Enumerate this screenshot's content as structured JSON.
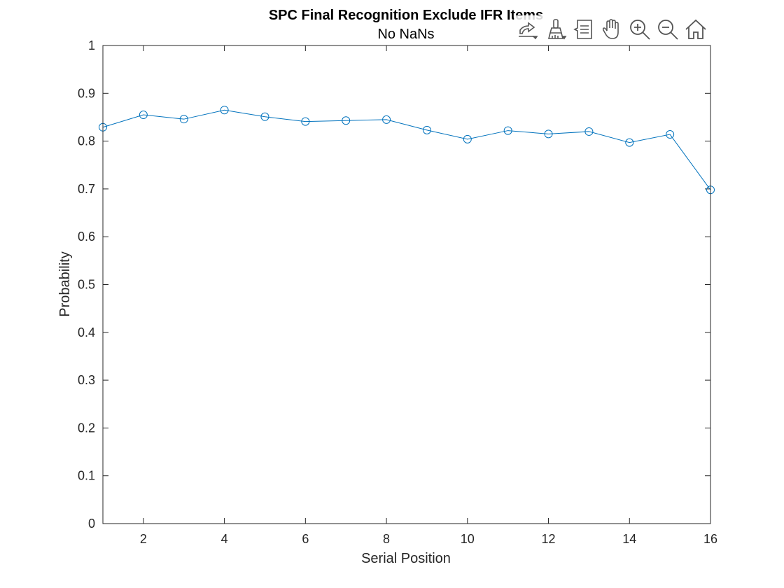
{
  "chart_data": {
    "type": "line",
    "title": "SPC Final Recognition Exclude IFR Items",
    "subtitle": "No NaNs",
    "xlabel": "Serial Position",
    "ylabel": "Probability",
    "xlim": [
      1,
      16
    ],
    "ylim": [
      0,
      1
    ],
    "xticks": [
      2,
      4,
      6,
      8,
      10,
      12,
      14,
      16
    ],
    "yticks": [
      0,
      0.1,
      0.2,
      0.3,
      0.4,
      0.5,
      0.6,
      0.7,
      0.8,
      0.9,
      1
    ],
    "ytick_labels": [
      "0",
      "0.1",
      "0.2",
      "0.3",
      "0.4",
      "0.5",
      "0.6",
      "0.7",
      "0.8",
      "0.9",
      "1"
    ],
    "grid": false,
    "marker": "circle",
    "series": [
      {
        "x": [
          1,
          2,
          3,
          4,
          5,
          6,
          7,
          8,
          9,
          10,
          11,
          12,
          13,
          14,
          15,
          16
        ],
        "values": [
          0.829,
          0.855,
          0.846,
          0.865,
          0.851,
          0.841,
          0.843,
          0.845,
          0.823,
          0.804,
          0.822,
          0.815,
          0.82,
          0.797,
          0.814,
          0.698
        ],
        "color": "#0072bd"
      }
    ]
  },
  "toolbar": {
    "buttons": [
      {
        "icon": "export-icon"
      },
      {
        "icon": "brush-icon"
      },
      {
        "icon": "datatip-icon"
      },
      {
        "icon": "pan-hand-icon"
      },
      {
        "icon": "zoom-in-icon"
      },
      {
        "icon": "zoom-out-icon"
      },
      {
        "icon": "home-icon"
      }
    ]
  }
}
